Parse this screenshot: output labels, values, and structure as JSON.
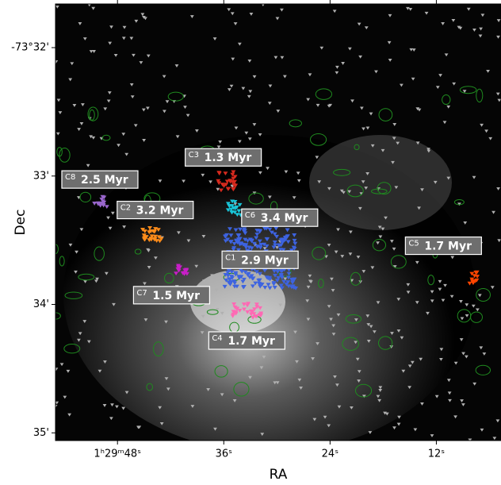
{
  "chart_data": {
    "type": "image",
    "xlabel": "RA",
    "ylabel": "Dec",
    "xlim": [
      55,
      4.7
    ],
    "ylim": [
      31.66,
      35.06
    ],
    "xticks": [
      {
        "value": 48,
        "label": "1ʰ29ᵐ48ˢ"
      },
      {
        "value": 36,
        "label": "36ˢ"
      },
      {
        "value": 24,
        "label": "24ˢ"
      },
      {
        "value": 12,
        "label": "12ˢ"
      }
    ],
    "yticks": [
      {
        "value": 32,
        "label": "-73°32'"
      },
      {
        "value": 33,
        "label": "33'"
      },
      {
        "value": 34,
        "label": "34'"
      },
      {
        "value": 35,
        "label": "35'"
      }
    ],
    "clusters": [
      {
        "name": "C1",
        "label": "2.9 Myr",
        "color": "#3d63e0",
        "ra": 31.9,
        "dec": 33.64
      },
      {
        "name": "C2",
        "label": "3.2 Myr",
        "color": "#ff8c1a",
        "ra": 44.1,
        "dec": 33.45
      },
      {
        "name": "C3",
        "label": "1.3 Myr",
        "color": "#d62a1e",
        "ra": 35.7,
        "dec": 33.04
      },
      {
        "name": "C4",
        "label": "1.7 Myr",
        "color": "#ff69b4",
        "ra": 33.4,
        "dec": 34.04
      },
      {
        "name": "C5",
        "label": "1.7 Myr",
        "color": "#ff4500",
        "ra": 7.8,
        "dec": 33.79
      },
      {
        "name": "C6",
        "label": "3.4 Myr",
        "color": "#19c3d6",
        "ra": 34.7,
        "dec": 33.25
      },
      {
        "name": "C7",
        "label": "1.5 Myr",
        "color": "#c81ec8",
        "ra": 41.0,
        "dec": 33.73
      },
      {
        "name": "C8",
        "label": "2.5 Myr",
        "color": "#9966cc",
        "ra": 49.9,
        "dec": 33.2
      }
    ]
  }
}
